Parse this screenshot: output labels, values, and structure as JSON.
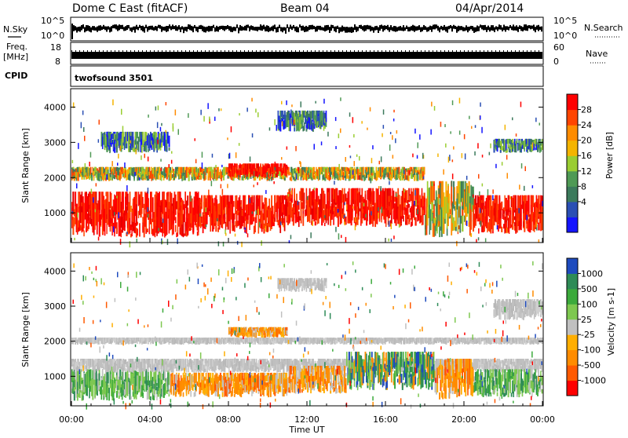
{
  "header": {
    "station": "Dome C East (fitACF)",
    "beam": "Beam 04",
    "date": "04/Apr/2014"
  },
  "top_panels": {
    "nsky": {
      "label": "N.Sky",
      "left_ticks": [
        "10^5",
        "10^0"
      ],
      "right_label": "N.Search",
      "right_ticks": [
        "10^5",
        "10^0"
      ],
      "approx_level": "near 10^5 throughout"
    },
    "freq": {
      "label_line1": "Freq.",
      "label_line2": "[MHz]",
      "left_ticks": [
        "18",
        "8"
      ],
      "right_label": "Nave",
      "right_ticks": [
        "60",
        "0"
      ]
    },
    "cpid": {
      "label": "CPID",
      "value_text": "twofsound 3501"
    }
  },
  "chart_data": [
    {
      "type": "heatmap",
      "title": "",
      "xlabel": "",
      "ylabel": "Slant Range [km]",
      "x_ticks": [
        "00:00",
        "04:00",
        "08:00",
        "12:00",
        "16:00",
        "20:00",
        "00:00"
      ],
      "y_ticks": [
        "1000",
        "2000",
        "3000",
        "4000"
      ],
      "ylim": [
        180,
        4500
      ],
      "xlim_hours": [
        0,
        24
      ],
      "colorbar": {
        "label": "Power [dB]",
        "ticks": [
          "28",
          "24",
          "20",
          "16",
          "12",
          "8",
          "4"
        ],
        "colors": [
          "#1414ff",
          "#2a4fb4",
          "#3c7a5c",
          "#4f9a55",
          "#9acd32",
          "#f4b400",
          "#ff8c00",
          "#ff4500",
          "#ff0000"
        ]
      },
      "regions": [
        {
          "t0": 0.0,
          "t1": 6.5,
          "r0": 300,
          "r1": 1600,
          "level": "high"
        },
        {
          "t0": 6.5,
          "t1": 11.0,
          "r0": 400,
          "r1": 1500,
          "level": "high"
        },
        {
          "t0": 11.0,
          "t1": 18.0,
          "r0": 600,
          "r1": 1700,
          "level": "high"
        },
        {
          "t0": 18.0,
          "t1": 20.5,
          "r0": 300,
          "r1": 1900,
          "level": "mid"
        },
        {
          "t0": 20.5,
          "t1": 24.0,
          "r0": 400,
          "r1": 1500,
          "level": "high"
        },
        {
          "t0": 0.0,
          "t1": 18.0,
          "r0": 1900,
          "r1": 2300,
          "level": "mid"
        },
        {
          "t0": 8.0,
          "t1": 11.0,
          "r0": 2000,
          "r1": 2400,
          "level": "high"
        },
        {
          "t0": 10.5,
          "t1": 13.0,
          "r0": 3300,
          "r1": 3900,
          "level": "low"
        },
        {
          "t0": 1.5,
          "t1": 5.0,
          "r0": 2700,
          "r1": 3300,
          "level": "low"
        },
        {
          "t0": 21.5,
          "t1": 24.0,
          "r0": 2700,
          "r1": 3100,
          "level": "low"
        }
      ]
    },
    {
      "type": "heatmap",
      "title": "",
      "xlabel": "Time UT",
      "ylabel": "Slant Range [km]",
      "x_ticks": [
        "00:00",
        "04:00",
        "08:00",
        "12:00",
        "16:00",
        "20:00",
        "00:00"
      ],
      "y_ticks": [
        "1000",
        "2000",
        "3000",
        "4000"
      ],
      "ylim": [
        180,
        4500
      ],
      "xlim_hours": [
        0,
        24
      ],
      "colorbar": {
        "label": "Velocity [m s-1]",
        "ticks": [
          "1000",
          "500",
          "100",
          "25",
          "-25",
          "-100",
          "-500",
          "-1000"
        ],
        "colors": [
          "#ff0000",
          "#ff5a00",
          "#ff8c00",
          "#ffae00",
          "#c0c0c0",
          "#7ec850",
          "#3caa3c",
          "#2e8b57",
          "#1e4bbe"
        ]
      },
      "regions": [
        {
          "t0": 0.0,
          "t1": 5.0,
          "r0": 300,
          "r1": 1200,
          "level": "v_green"
        },
        {
          "t0": 0.0,
          "t1": 24.0,
          "r0": 1100,
          "r1": 1500,
          "level": "v_grey"
        },
        {
          "t0": 5.0,
          "t1": 11.0,
          "r0": 400,
          "r1": 1100,
          "level": "v_orange"
        },
        {
          "t0": 11.0,
          "t1": 14.0,
          "r0": 500,
          "r1": 1300,
          "level": "v_orange"
        },
        {
          "t0": 14.0,
          "t1": 18.5,
          "r0": 600,
          "r1": 1700,
          "level": "v_teal"
        },
        {
          "t0": 18.5,
          "t1": 20.5,
          "r0": 300,
          "r1": 1500,
          "level": "v_orange"
        },
        {
          "t0": 20.5,
          "t1": 24.0,
          "r0": 400,
          "r1": 1200,
          "level": "v_green"
        },
        {
          "t0": 0.0,
          "t1": 24.0,
          "r0": 1900,
          "r1": 2100,
          "level": "v_grey"
        },
        {
          "t0": 8.0,
          "t1": 11.0,
          "r0": 2100,
          "r1": 2400,
          "level": "v_orange"
        },
        {
          "t0": 10.5,
          "t1": 13.0,
          "r0": 3400,
          "r1": 3800,
          "level": "v_grey"
        },
        {
          "t0": 21.5,
          "t1": 24.0,
          "r0": 2600,
          "r1": 3200,
          "level": "v_grey"
        }
      ]
    }
  ]
}
